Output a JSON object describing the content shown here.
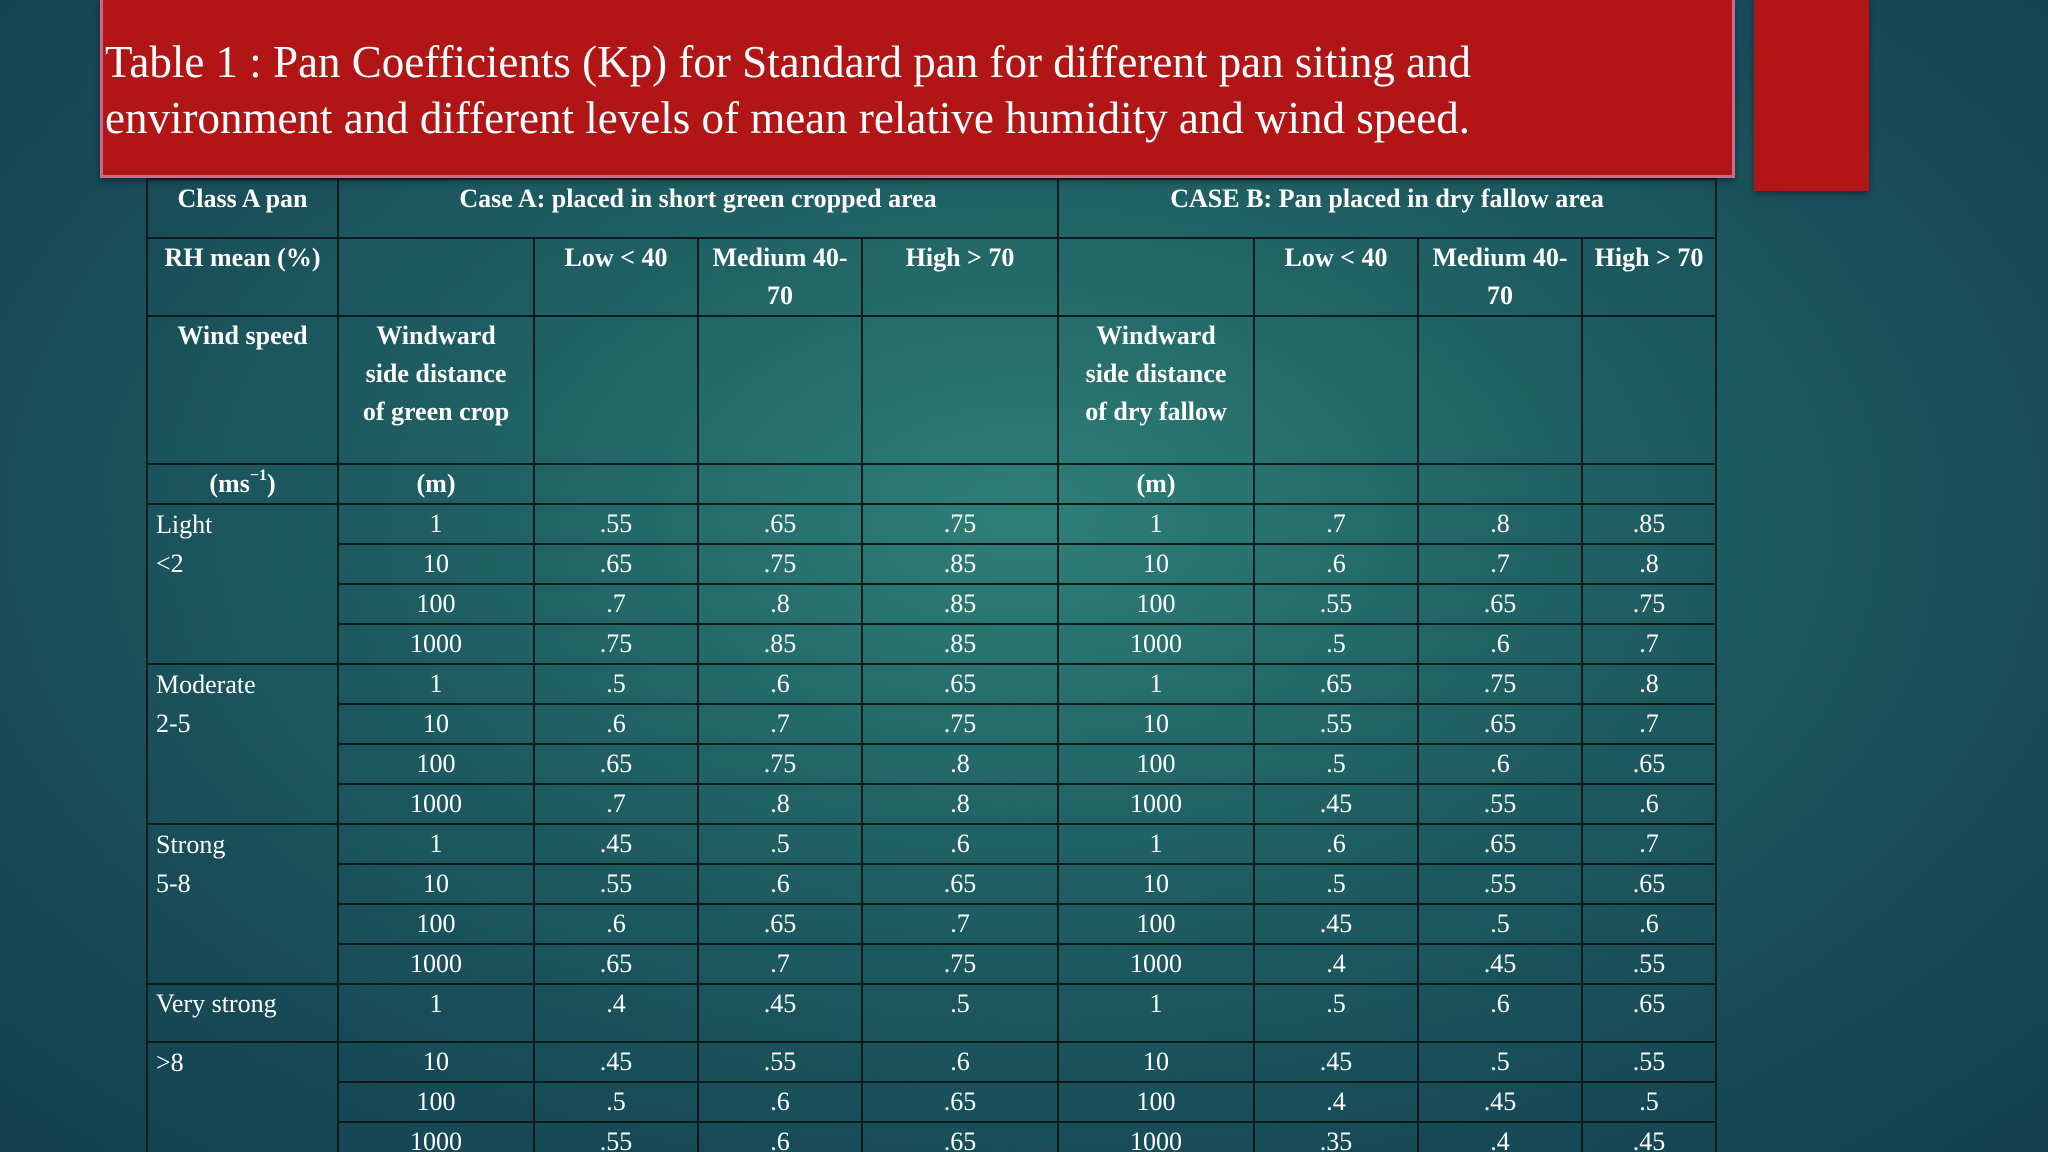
{
  "slide": {
    "title_line1": "Table 1 : Pan Coefficients (Kp) for Standard pan for different pan siting and",
    "title_line2": "environment and different levels of mean relative humidity and wind speed."
  },
  "colors": {
    "title_bg": "#b11515",
    "background": "#1f5f63",
    "text": "#ffffff"
  },
  "table": {
    "header": {
      "class_label": "Class A pan",
      "case_a": "Case A: placed in short green cropped area",
      "case_b": "CASE B: Pan placed in dry fallow area",
      "rh_label": "RH mean (%)",
      "low": "Low < 40",
      "medium_1": "Medium 40-",
      "medium_2": "70",
      "high": "High > 70",
      "wind_label": "Wind speed",
      "windward_a_1": "Windward",
      "windward_a_2": "side distance",
      "windward_a_3": "of green crop",
      "windward_b_1": "Windward",
      "windward_b_2": "side distance",
      "windward_b_3": "of dry fallow",
      "unit_wind_main": "(ms",
      "unit_wind_sup": "−1",
      "unit_wind_close": ")",
      "unit_distance": "(m)"
    },
    "groups": [
      {
        "label_1": "Light",
        "label_2": "<2",
        "rows": [
          {
            "dist_a": "1",
            "a_low": ".55",
            "a_med": ".65",
            "a_high": ".75",
            "dist_b": "1",
            "b_low": ".7",
            "b_med": ".8",
            "b_high": ".85"
          },
          {
            "dist_a": "10",
            "a_low": ".65",
            "a_med": ".75",
            "a_high": ".85",
            "dist_b": "10",
            "b_low": ".6",
            "b_med": ".7",
            "b_high": ".8"
          },
          {
            "dist_a": "100",
            "a_low": ".7",
            "a_med": ".8",
            "a_high": ".85",
            "dist_b": "100",
            "b_low": ".55",
            "b_med": ".65",
            "b_high": ".75"
          },
          {
            "dist_a": "1000",
            "a_low": ".75",
            "a_med": ".85",
            "a_high": ".85",
            "dist_b": "1000",
            "b_low": ".5",
            "b_med": ".6",
            "b_high": ".7"
          }
        ]
      },
      {
        "label_1": "Moderate",
        "label_2": "2-5",
        "rows": [
          {
            "dist_a": "1",
            "a_low": ".5",
            "a_med": ".6",
            "a_high": ".65",
            "dist_b": "1",
            "b_low": ".65",
            "b_med": ".75",
            "b_high": ".8"
          },
          {
            "dist_a": "10",
            "a_low": ".6",
            "a_med": ".7",
            "a_high": ".75",
            "dist_b": "10",
            "b_low": ".55",
            "b_med": ".65",
            "b_high": ".7"
          },
          {
            "dist_a": "100",
            "a_low": ".65",
            "a_med": ".75",
            "a_high": ".8",
            "dist_b": "100",
            "b_low": ".5",
            "b_med": ".6",
            "b_high": ".65"
          },
          {
            "dist_a": "1000",
            "a_low": ".7",
            "a_med": ".8",
            "a_high": ".8",
            "dist_b": "1000",
            "b_low": ".45",
            "b_med": ".55",
            "b_high": ".6"
          }
        ]
      },
      {
        "label_1": "Strong",
        "label_2": "5-8",
        "rows": [
          {
            "dist_a": "1",
            "a_low": ".45",
            "a_med": ".5",
            "a_high": ".6",
            "dist_b": "1",
            "b_low": ".6",
            "b_med": ".65",
            "b_high": ".7"
          },
          {
            "dist_a": "10",
            "a_low": ".55",
            "a_med": ".6",
            "a_high": ".65",
            "dist_b": "10",
            "b_low": ".5",
            "b_med": ".55",
            "b_high": ".65"
          },
          {
            "dist_a": "100",
            "a_low": ".6",
            "a_med": ".65",
            "a_high": ".7",
            "dist_b": "100",
            "b_low": ".45",
            "b_med": ".5",
            "b_high": ".6"
          },
          {
            "dist_a": "1000",
            "a_low": ".65",
            "a_med": ".7",
            "a_high": ".75",
            "dist_b": "1000",
            "b_low": ".4",
            "b_med": ".45",
            "b_high": ".55"
          }
        ]
      },
      {
        "label_1": "Very strong",
        "label_2": ">8",
        "rows": [
          {
            "dist_a": "1",
            "a_low": ".4",
            "a_med": ".45",
            "a_high": ".5",
            "dist_b": "1",
            "b_low": ".5",
            "b_med": ".6",
            "b_high": ".65"
          },
          {
            "dist_a": "10",
            "a_low": ".45",
            "a_med": ".55",
            "a_high": ".6",
            "dist_b": "10",
            "b_low": ".45",
            "b_med": ".5",
            "b_high": ".55"
          },
          {
            "dist_a": "100",
            "a_low": ".5",
            "a_med": ".6",
            "a_high": ".65",
            "dist_b": "100",
            "b_low": ".4",
            "b_med": ".45",
            "b_high": ".5"
          },
          {
            "dist_a": "1000",
            "a_low": ".55",
            "a_med": ".6",
            "a_high": ".65",
            "dist_b": "1000",
            "b_low": ".35",
            "b_med": ".4",
            "b_high": ".45"
          }
        ]
      }
    ]
  }
}
